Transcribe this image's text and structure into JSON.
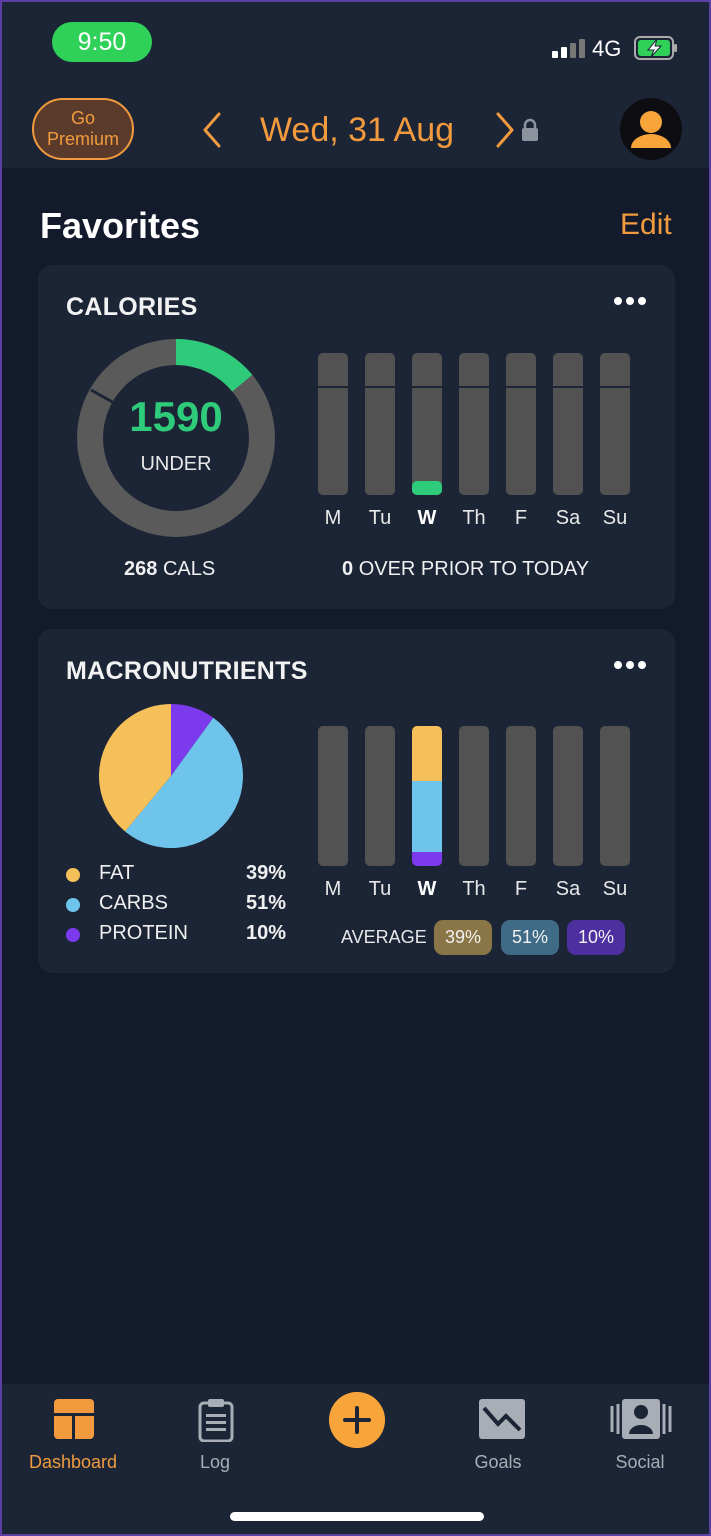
{
  "status": {
    "time": "9:50",
    "network": "4G"
  },
  "header": {
    "premium_line1": "Go",
    "premium_line2": "Premium",
    "date": "Wed, 31 Aug"
  },
  "favorites": {
    "title": "Favorites",
    "edit": "Edit"
  },
  "calories": {
    "title": "CALORIES",
    "value": "1590",
    "status": "UNDER",
    "consumed": "268",
    "consumed_unit": "CALS",
    "over_count": "0",
    "over_text": "OVER PRIOR TO TODAY",
    "ring_progress_fraction": 0.14,
    "days": [
      "M",
      "Tu",
      "W",
      "Th",
      "F",
      "Sa",
      "Su"
    ],
    "active_day_index": 2,
    "today_fill_fraction": 0.1,
    "colors": {
      "ring_track": "#5a5a5a",
      "ring_fill": "#2ecc7a",
      "value": "#2ecc7a"
    }
  },
  "macros": {
    "title": "MACRONUTRIENTS",
    "legend": [
      {
        "name": "FAT",
        "pct": "39%",
        "color": "#f5c05a"
      },
      {
        "name": "CARBS",
        "pct": "51%",
        "color": "#6fc4eb"
      },
      {
        "name": "PROTEIN",
        "pct": "10%",
        "color": "#7c3aed"
      }
    ],
    "days": [
      "M",
      "Tu",
      "W",
      "Th",
      "F",
      "Sa",
      "Su"
    ],
    "active_day_index": 2,
    "average_label": "AVERAGE",
    "average": [
      {
        "pct": "39%",
        "color": "#8a7546"
      },
      {
        "pct": "51%",
        "color": "#3f6b86"
      },
      {
        "pct": "10%",
        "color": "#4d2fa0"
      }
    ],
    "fractions": {
      "fat": 0.39,
      "carbs": 0.51,
      "protein": 0.1
    }
  },
  "tabbar": {
    "items": [
      {
        "label": "Dashboard",
        "icon": "dashboard-icon",
        "active": true
      },
      {
        "label": "Log",
        "icon": "clipboard-icon",
        "active": false
      },
      {
        "label": "Goals",
        "icon": "goals-chart-icon",
        "active": false
      },
      {
        "label": "Social",
        "icon": "social-people-icon",
        "active": false
      }
    ],
    "add_icon": "plus-icon",
    "accent": "#f19a3e"
  }
}
